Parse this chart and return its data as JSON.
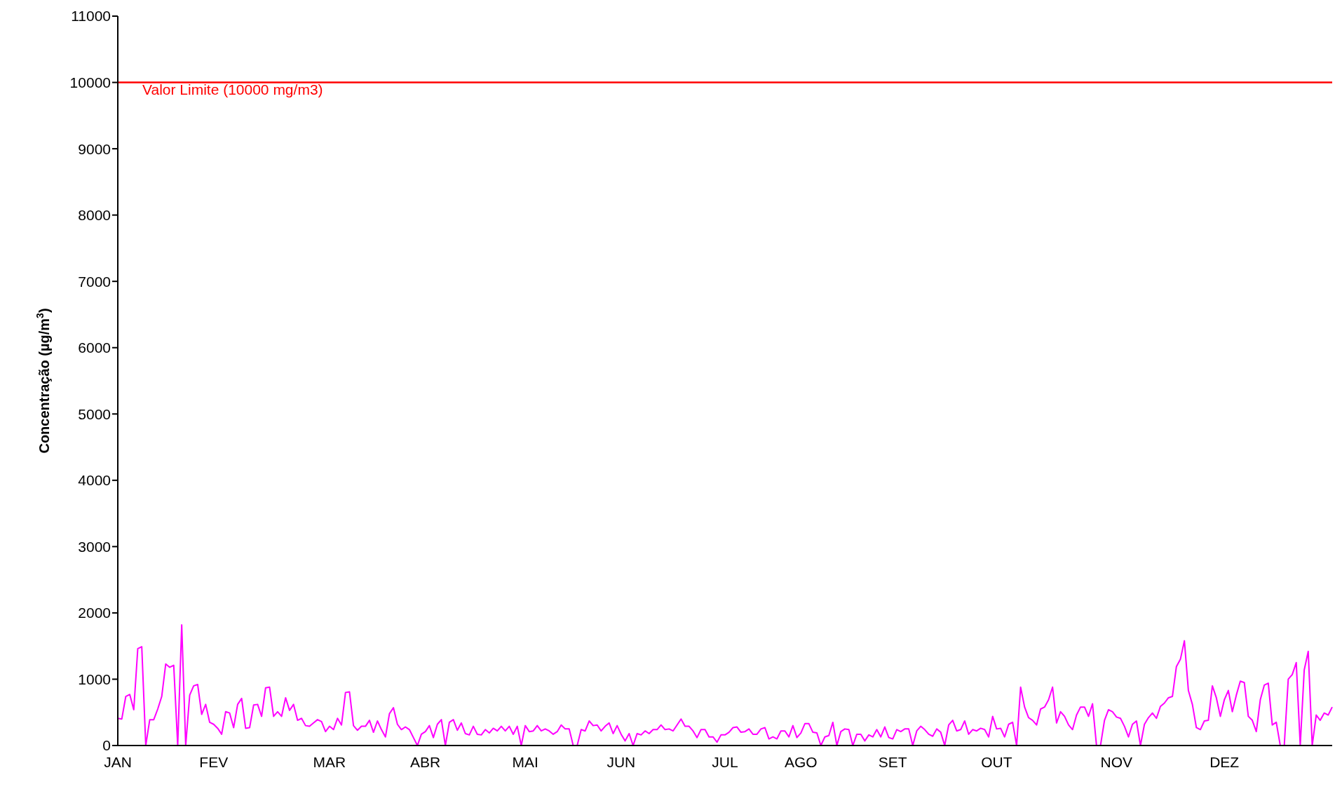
{
  "chart_data": {
    "type": "line",
    "ylabel": "Concentração (µg/m$^{3}$)",
    "categories": [
      "JAN",
      null,
      null,
      null,
      null,
      null,
      null,
      null,
      null,
      null,
      null,
      null,
      null,
      null,
      null,
      null,
      null,
      null,
      null,
      null,
      null,
      null,
      null,
      null,
      "FEV",
      null,
      null,
      null,
      null,
      null,
      null,
      null,
      null,
      null,
      null,
      null,
      null,
      null,
      null,
      null,
      null,
      null,
      null,
      null,
      null,
      null,
      null,
      null,
      null,
      null,
      null,
      null,
      null,
      "MAR",
      null,
      null,
      null,
      null,
      null,
      null,
      null,
      null,
      null,
      null,
      null,
      null,
      null,
      null,
      null,
      null,
      null,
      null,
      null,
      null,
      null,
      null,
      null,
      "ABR",
      null,
      null,
      null,
      null,
      null,
      null,
      null,
      null,
      null,
      null,
      null,
      null,
      null,
      null,
      null,
      null,
      null,
      null,
      null,
      null,
      null,
      null,
      null,
      null,
      "MAI",
      null,
      null,
      null,
      null,
      null,
      null,
      null,
      null,
      null,
      null,
      null,
      null,
      null,
      null,
      null,
      null,
      null,
      null,
      null,
      null,
      null,
      null,
      null,
      "JUN",
      null,
      null,
      null,
      null,
      null,
      null,
      null,
      null,
      null,
      null,
      null,
      null,
      null,
      null,
      null,
      null,
      null,
      null,
      null,
      null,
      null,
      null,
      null,
      null,
      null,
      "JUL",
      null,
      null,
      null,
      null,
      null,
      null,
      null,
      null,
      null,
      null,
      null,
      null,
      null,
      null,
      null,
      null,
      null,
      null,
      "AGO",
      null,
      null,
      null,
      null,
      null,
      null,
      null,
      null,
      null,
      null,
      null,
      null,
      null,
      null,
      null,
      null,
      null,
      null,
      null,
      null,
      null,
      null,
      "SET",
      null,
      null,
      null,
      null,
      null,
      null,
      null,
      null,
      null,
      null,
      null,
      null,
      null,
      null,
      null,
      null,
      null,
      null,
      null,
      null,
      null,
      null,
      null,
      null,
      null,
      "OUT",
      null,
      null,
      null,
      null,
      null,
      null,
      null,
      null,
      null,
      null,
      null,
      null,
      null,
      null,
      null,
      null,
      null,
      null,
      null,
      null,
      null,
      null,
      null,
      null,
      null,
      null,
      null,
      null,
      null,
      "NOV",
      null,
      null,
      null,
      null,
      null,
      null,
      null,
      null,
      null,
      null,
      null,
      null,
      null,
      null,
      null,
      null,
      null,
      null,
      null,
      null,
      null,
      null,
      null,
      null,
      null,
      null,
      "DEZ",
      null,
      null,
      null,
      null,
      null,
      null,
      null,
      null,
      null,
      null,
      null,
      null,
      null,
      null,
      null,
      null,
      null,
      null,
      null,
      null,
      null,
      null,
      null,
      null,
      null,
      null,
      null
    ],
    "ylim": [
      0,
      11000
    ],
    "yticks": [
      0,
      1000,
      2000,
      3000,
      4000,
      5000,
      6000,
      7000,
      8000,
      9000,
      10000,
      11000
    ],
    "series": [
      {
        "color": "#ff00ff",
        "values": [
          410,
          400,
          740,
          770,
          540,
          1460,
          1490,
          0,
          390,
          390,
          550,
          740,
          1230,
          1180,
          1210,
          0,
          1820,
          0,
          760,
          900,
          920,
          470,
          620,
          350,
          320,
          260,
          170,
          510,
          490,
          270,
          620,
          710,
          260,
          270,
          610,
          620,
          440,
          870,
          880,
          440,
          510,
          440,
          720,
          530,
          620,
          380,
          410,
          300,
          290,
          340,
          390,
          360,
          210,
          290,
          240,
          410,
          310,
          800,
          810,
          300,
          230,
          290,
          290,
          380,
          200,
          370,
          240,
          130,
          480,
          570,
          320,
          240,
          280,
          240,
          120,
          0,
          170,
          210,
          300,
          120,
          320,
          390,
          0,
          350,
          390,
          230,
          340,
          180,
          160,
          290,
          170,
          160,
          240,
          190,
          260,
          220,
          290,
          220,
          290,
          170,
          290,
          0,
          300,
          210,
          220,
          300,
          220,
          250,
          220,
          170,
          210,
          310,
          250,
          250,
          0,
          0,
          240,
          220,
          370,
          300,
          310,
          220,
          290,
          340,
          180,
          300,
          170,
          70,
          180,
          0,
          180,
          160,
          220,
          180,
          240,
          240,
          310,
          240,
          250,
          220,
          310,
          400,
          290,
          290,
          220,
          120,
          240,
          240,
          130,
          130,
          50,
          160,
          160,
          200,
          270,
          280,
          200,
          210,
          250,
          170,
          170,
          250,
          270,
          100,
          130,
          100,
          220,
          220,
          130,
          300,
          120,
          190,
          330,
          330,
          200,
          190,
          0,
          130,
          150,
          350,
          0,
          210,
          250,
          240,
          0,
          170,
          170,
          70,
          160,
          130,
          240,
          130,
          280,
          120,
          100,
          240,
          210,
          250,
          250,
          0,
          220,
          290,
          240,
          170,
          140,
          250,
          200,
          0,
          310,
          380,
          220,
          240,
          370,
          170,
          240,
          220,
          260,
          240,
          130,
          440,
          250,
          260,
          130,
          320,
          350,
          0,
          880,
          580,
          420,
          380,
          310,
          550,
          580,
          690,
          880,
          340,
          510,
          440,
          310,
          240,
          460,
          580,
          580,
          440,
          630,
          0,
          0,
          380,
          540,
          510,
          430,
          410,
          290,
          130,
          320,
          370,
          0,
          320,
          420,
          490,
          410,
          590,
          640,
          720,
          740,
          1190,
          1300,
          1580,
          830,
          620,
          270,
          240,
          370,
          380,
          900,
          720,
          440,
          690,
          830,
          510,
          760,
          970,
          950,
          440,
          380,
          210,
          690,
          910,
          940,
          310,
          350,
          0,
          0,
          1000,
          1070,
          1250,
          0,
          1140,
          1420,
          0,
          460,
          380,
          490,
          460,
          580
        ]
      }
    ],
    "ref_lines": [
      {
        "axis": "y",
        "value": 10000,
        "label": "Valor Limite (10000 mg/m3)",
        "color": "#ff0000"
      }
    ],
    "marker": "none",
    "line_style": "solid",
    "grid": false
  }
}
